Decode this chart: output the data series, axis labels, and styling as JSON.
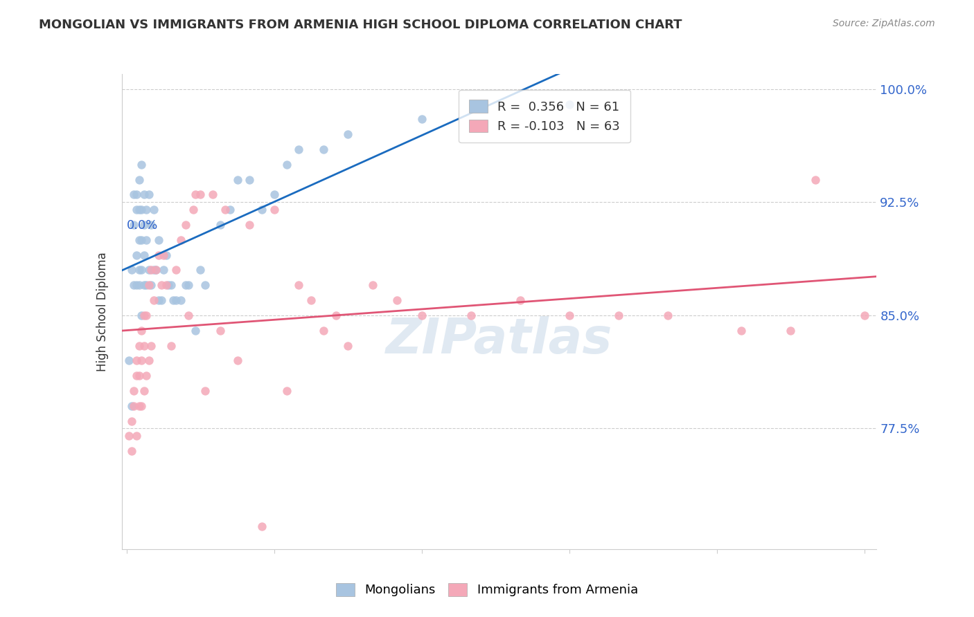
{
  "title": "MONGOLIAN VS IMMIGRANTS FROM ARMENIA HIGH SCHOOL DIPLOMA CORRELATION CHART",
  "source": "Source: ZipAtlas.com",
  "ylabel": "High School Diploma",
  "ytick_labels": [
    "100.0%",
    "92.5%",
    "85.0%",
    "77.5%"
  ],
  "ytick_values": [
    1.0,
    0.925,
    0.85,
    0.775
  ],
  "ymin": 0.695,
  "ymax": 1.01,
  "xmin": -0.002,
  "xmax": 0.305,
  "legend_r1": "R =  0.356   N = 61",
  "legend_r2": "R = -0.103   N = 63",
  "watermark": "ZIPatlas",
  "mongolian_color": "#a8c4e0",
  "armenia_color": "#f4a8b8",
  "trendline_mongolian_color": "#1a6bbf",
  "trendline_armenia_color": "#e05575",
  "mongolian_x": [
    0.001,
    0.002,
    0.002,
    0.003,
    0.003,
    0.003,
    0.004,
    0.004,
    0.004,
    0.004,
    0.005,
    0.005,
    0.005,
    0.005,
    0.005,
    0.006,
    0.006,
    0.006,
    0.006,
    0.006,
    0.007,
    0.007,
    0.007,
    0.007,
    0.008,
    0.008,
    0.008,
    0.009,
    0.009,
    0.01,
    0.01,
    0.011,
    0.011,
    0.012,
    0.013,
    0.013,
    0.014,
    0.015,
    0.016,
    0.017,
    0.018,
    0.019,
    0.02,
    0.022,
    0.024,
    0.025,
    0.028,
    0.03,
    0.032,
    0.038,
    0.042,
    0.045,
    0.05,
    0.055,
    0.06,
    0.065,
    0.07,
    0.08,
    0.09,
    0.12,
    0.18
  ],
  "mongolian_y": [
    0.82,
    0.79,
    0.88,
    0.87,
    0.91,
    0.93,
    0.87,
    0.89,
    0.92,
    0.93,
    0.87,
    0.88,
    0.9,
    0.92,
    0.94,
    0.85,
    0.88,
    0.9,
    0.92,
    0.95,
    0.87,
    0.89,
    0.91,
    0.93,
    0.87,
    0.9,
    0.92,
    0.88,
    0.93,
    0.87,
    0.91,
    0.88,
    0.92,
    0.88,
    0.86,
    0.9,
    0.86,
    0.88,
    0.89,
    0.87,
    0.87,
    0.86,
    0.86,
    0.86,
    0.87,
    0.87,
    0.84,
    0.88,
    0.87,
    0.91,
    0.92,
    0.94,
    0.94,
    0.92,
    0.93,
    0.95,
    0.96,
    0.96,
    0.97,
    0.98,
    0.99
  ],
  "armenia_x": [
    0.001,
    0.002,
    0.002,
    0.003,
    0.003,
    0.004,
    0.004,
    0.004,
    0.005,
    0.005,
    0.005,
    0.006,
    0.006,
    0.006,
    0.007,
    0.007,
    0.007,
    0.008,
    0.008,
    0.009,
    0.009,
    0.01,
    0.01,
    0.011,
    0.012,
    0.013,
    0.014,
    0.015,
    0.016,
    0.018,
    0.02,
    0.022,
    0.024,
    0.025,
    0.027,
    0.028,
    0.03,
    0.032,
    0.035,
    0.038,
    0.04,
    0.045,
    0.05,
    0.055,
    0.06,
    0.065,
    0.07,
    0.075,
    0.08,
    0.085,
    0.09,
    0.1,
    0.11,
    0.12,
    0.14,
    0.16,
    0.18,
    0.2,
    0.22,
    0.25,
    0.27,
    0.28,
    0.3
  ],
  "armenia_y": [
    0.77,
    0.76,
    0.78,
    0.79,
    0.8,
    0.77,
    0.81,
    0.82,
    0.79,
    0.81,
    0.83,
    0.79,
    0.82,
    0.84,
    0.8,
    0.83,
    0.85,
    0.81,
    0.85,
    0.82,
    0.87,
    0.83,
    0.88,
    0.86,
    0.88,
    0.89,
    0.87,
    0.89,
    0.87,
    0.83,
    0.88,
    0.9,
    0.91,
    0.85,
    0.92,
    0.93,
    0.93,
    0.8,
    0.93,
    0.84,
    0.92,
    0.82,
    0.91,
    0.71,
    0.92,
    0.8,
    0.87,
    0.86,
    0.84,
    0.85,
    0.83,
    0.87,
    0.86,
    0.85,
    0.85,
    0.86,
    0.85,
    0.85,
    0.85,
    0.84,
    0.84,
    0.94,
    0.85
  ]
}
